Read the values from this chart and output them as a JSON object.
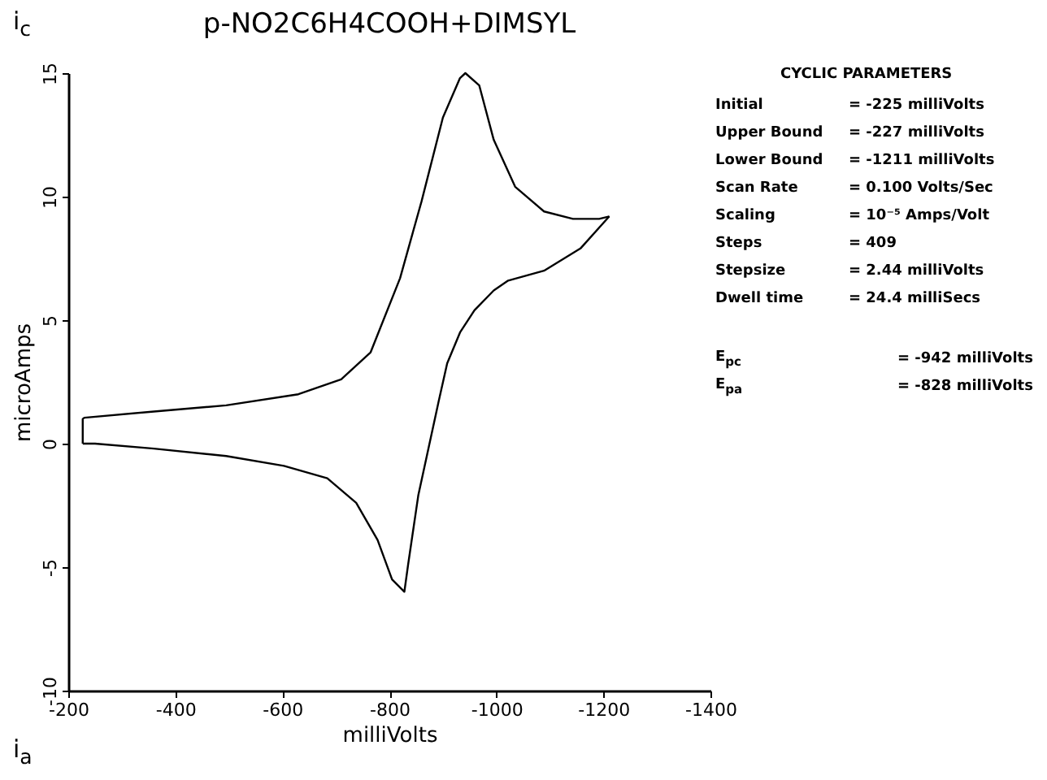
{
  "chart_data": {
    "type": "line",
    "title": "p-NO2C6H4COOH+DIMSYL",
    "xlabel": "milliVolts",
    "ylabel": "microAmps",
    "xlim": [
      -200,
      -1400
    ],
    "xticks": [
      -200,
      -400,
      -600,
      -800,
      -1000,
      -1200,
      -1400
    ],
    "ylim": [
      -10,
      15
    ],
    "yticks": [
      -10,
      -5,
      0,
      5,
      10,
      15
    ],
    "grid": false,
    "series": [
      {
        "color": "#000000",
        "x": [
          -227,
          -227,
          -230,
          -360,
          -495,
          -630,
          -710,
          -765,
          -820,
          -860,
          -900,
          -932,
          -942,
          -968,
          -995,
          -1035,
          -1089,
          -1143,
          -1192,
          -1211
        ],
        "values": [
          0.0,
          1.0,
          1.05,
          1.3,
          1.55,
          2.0,
          2.6,
          3.7,
          6.7,
          9.8,
          13.2,
          14.8,
          15.0,
          14.5,
          12.3,
          10.4,
          9.4,
          9.1,
          9.1,
          9.2
        ]
      },
      {
        "color": "#000000",
        "x": [
          -1211,
          -1157,
          -1089,
          -1022,
          -995,
          -959,
          -932,
          -908,
          -892,
          -873,
          -854,
          -835,
          -828,
          -805,
          -778,
          -738,
          -684,
          -603,
          -495,
          -360,
          -250,
          -227
        ],
        "values": [
          9.2,
          7.9,
          7.0,
          6.6,
          6.2,
          5.4,
          4.5,
          3.25,
          1.7,
          -0.2,
          -2.1,
          -4.9,
          -6.0,
          -5.5,
          -3.9,
          -2.4,
          -1.4,
          -0.9,
          -0.5,
          -0.2,
          0.0,
          0.0
        ]
      }
    ],
    "annotations": [
      "i$_{c}$",
      "i$_{a}$",
      "CYCLIC PARAMETERS",
      "Initial = -225 milliVolts",
      "Upper Bound = -227 milliVolts",
      "Lower Bound = -1211 milliVolts",
      "Scan Rate = 0.100 Volts/Sec",
      "Scaling = 10⁻⁵ Amps/Volt",
      "Steps = 409",
      "Stepsize = 2.44 milliVolts",
      "Dwell time = 24.4 milliSecs",
      "E$_{pc}$ = -942 milliVolts",
      "E$_{pa}$ = -828 milliVolts"
    ]
  }
}
